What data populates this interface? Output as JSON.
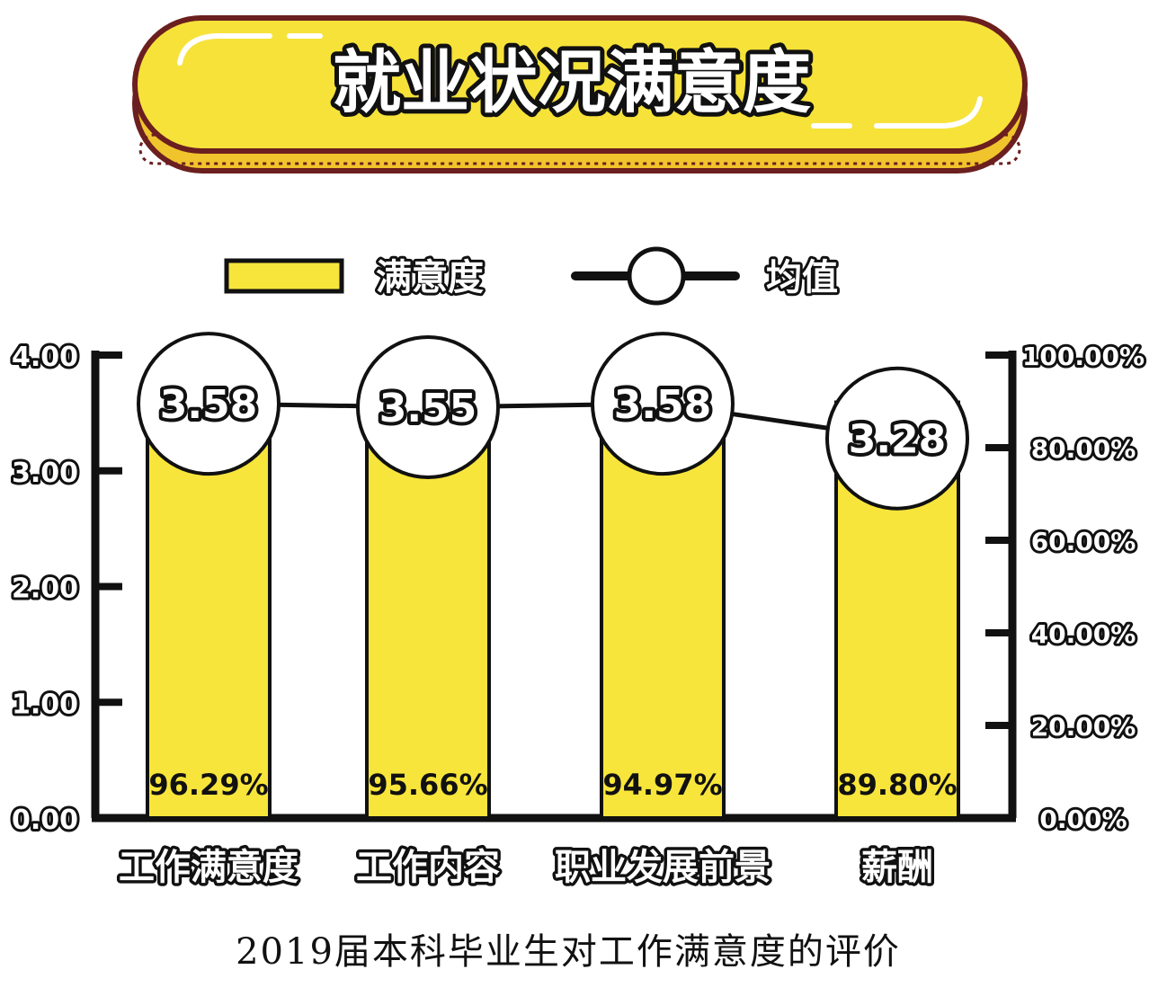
{
  "title": "就业状况满意度",
  "caption": "2019届本科毕业生对工作满意度的评价",
  "colors": {
    "banner_fill": "#f7e23a",
    "banner_dark": "#6b1f1f",
    "bar_fill": "#f8e53b",
    "ink": "#111111",
    "white": "#ffffff"
  },
  "chart_data": {
    "type": "bar",
    "categories": [
      "工作满意度",
      "工作内容",
      "职业发展前景",
      "薪酬"
    ],
    "series": [
      {
        "name": "满意度",
        "type": "bar",
        "axis": "right",
        "values": [
          96.29,
          95.66,
          94.97,
          89.8
        ],
        "value_labels": [
          "96.29%",
          "95.66%",
          "94.97%",
          "89.80%"
        ]
      },
      {
        "name": "均值",
        "type": "line",
        "axis": "left",
        "values": [
          3.58,
          3.55,
          3.58,
          3.28
        ],
        "value_labels": [
          "3.58",
          "3.55",
          "3.58",
          "3.28"
        ]
      }
    ],
    "left_axis": {
      "ylim": [
        0,
        4
      ],
      "ticks": [
        "0.00",
        "1.00",
        "2.00",
        "3.00",
        "4.00"
      ]
    },
    "right_axis": {
      "ylim": [
        0,
        100
      ],
      "ticks": [
        "0.00%",
        "20.00%",
        "40.00%",
        "60.00%",
        "80.00%",
        "100.00%"
      ]
    },
    "legend_position": "top",
    "grid": false
  }
}
